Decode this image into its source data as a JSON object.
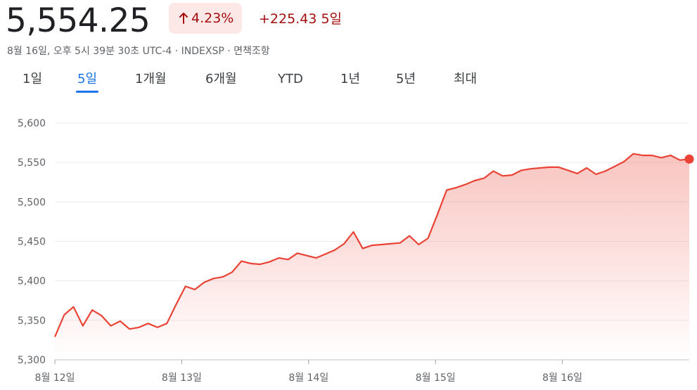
{
  "header": {
    "price": "5,554.25",
    "percent_change": "4.23%",
    "abs_change": "+225.43 5일",
    "subline": "8월 16일, 오후 5시 39분 30초 UTC-4 · INDEXSP · 면책조항",
    "arrow_icon": "arrow-up-icon"
  },
  "tabs": [
    {
      "label": "1일",
      "active": false
    },
    {
      "label": "5일",
      "active": true
    },
    {
      "label": "1개월",
      "active": false
    },
    {
      "label": "6개월",
      "active": false
    },
    {
      "label": "YTD",
      "active": false
    },
    {
      "label": "1년",
      "active": false
    },
    {
      "label": "5년",
      "active": false
    },
    {
      "label": "최대",
      "active": false
    }
  ],
  "colors": {
    "line": "#ea4335",
    "fill_top": "#f28b82",
    "badge_bg": "#fce8e6",
    "change_text": "#a50e0e",
    "accent": "#1a73e8",
    "grid": "#ebebeb"
  },
  "chart_data": {
    "type": "area",
    "ylim": [
      5300,
      5600
    ],
    "y_ticks": [
      "5,600",
      "5,550",
      "5,500",
      "5,450",
      "5,400",
      "5,350",
      "5,300"
    ],
    "x_ticks": [
      "8월 12일",
      "8월 13일",
      "8월 14일",
      "8월 15일",
      "8월 16일"
    ],
    "grid": true,
    "series": [
      {
        "values": [
          5329,
          5357,
          5367,
          5343,
          5363,
          5356,
          5343,
          5349,
          5339,
          5341,
          5346,
          5341,
          5346,
          5370,
          5393,
          5389,
          5398,
          5403,
          5405,
          5411,
          5425,
          5422,
          5421,
          5424,
          5429,
          5427,
          5435,
          5432,
          5429,
          5434,
          5439,
          5447,
          5462,
          5441,
          5445,
          5446,
          5447,
          5448,
          5457,
          5446,
          5454,
          5484,
          5515,
          5518,
          5522,
          5527,
          5530,
          5539,
          5533,
          5534,
          5540,
          5542,
          5543,
          5544,
          5544,
          5540,
          5536,
          5543,
          5535,
          5539,
          5545,
          5551,
          5561,
          5559,
          5559,
          5556,
          5559,
          5553,
          5554.25
        ]
      }
    ]
  }
}
